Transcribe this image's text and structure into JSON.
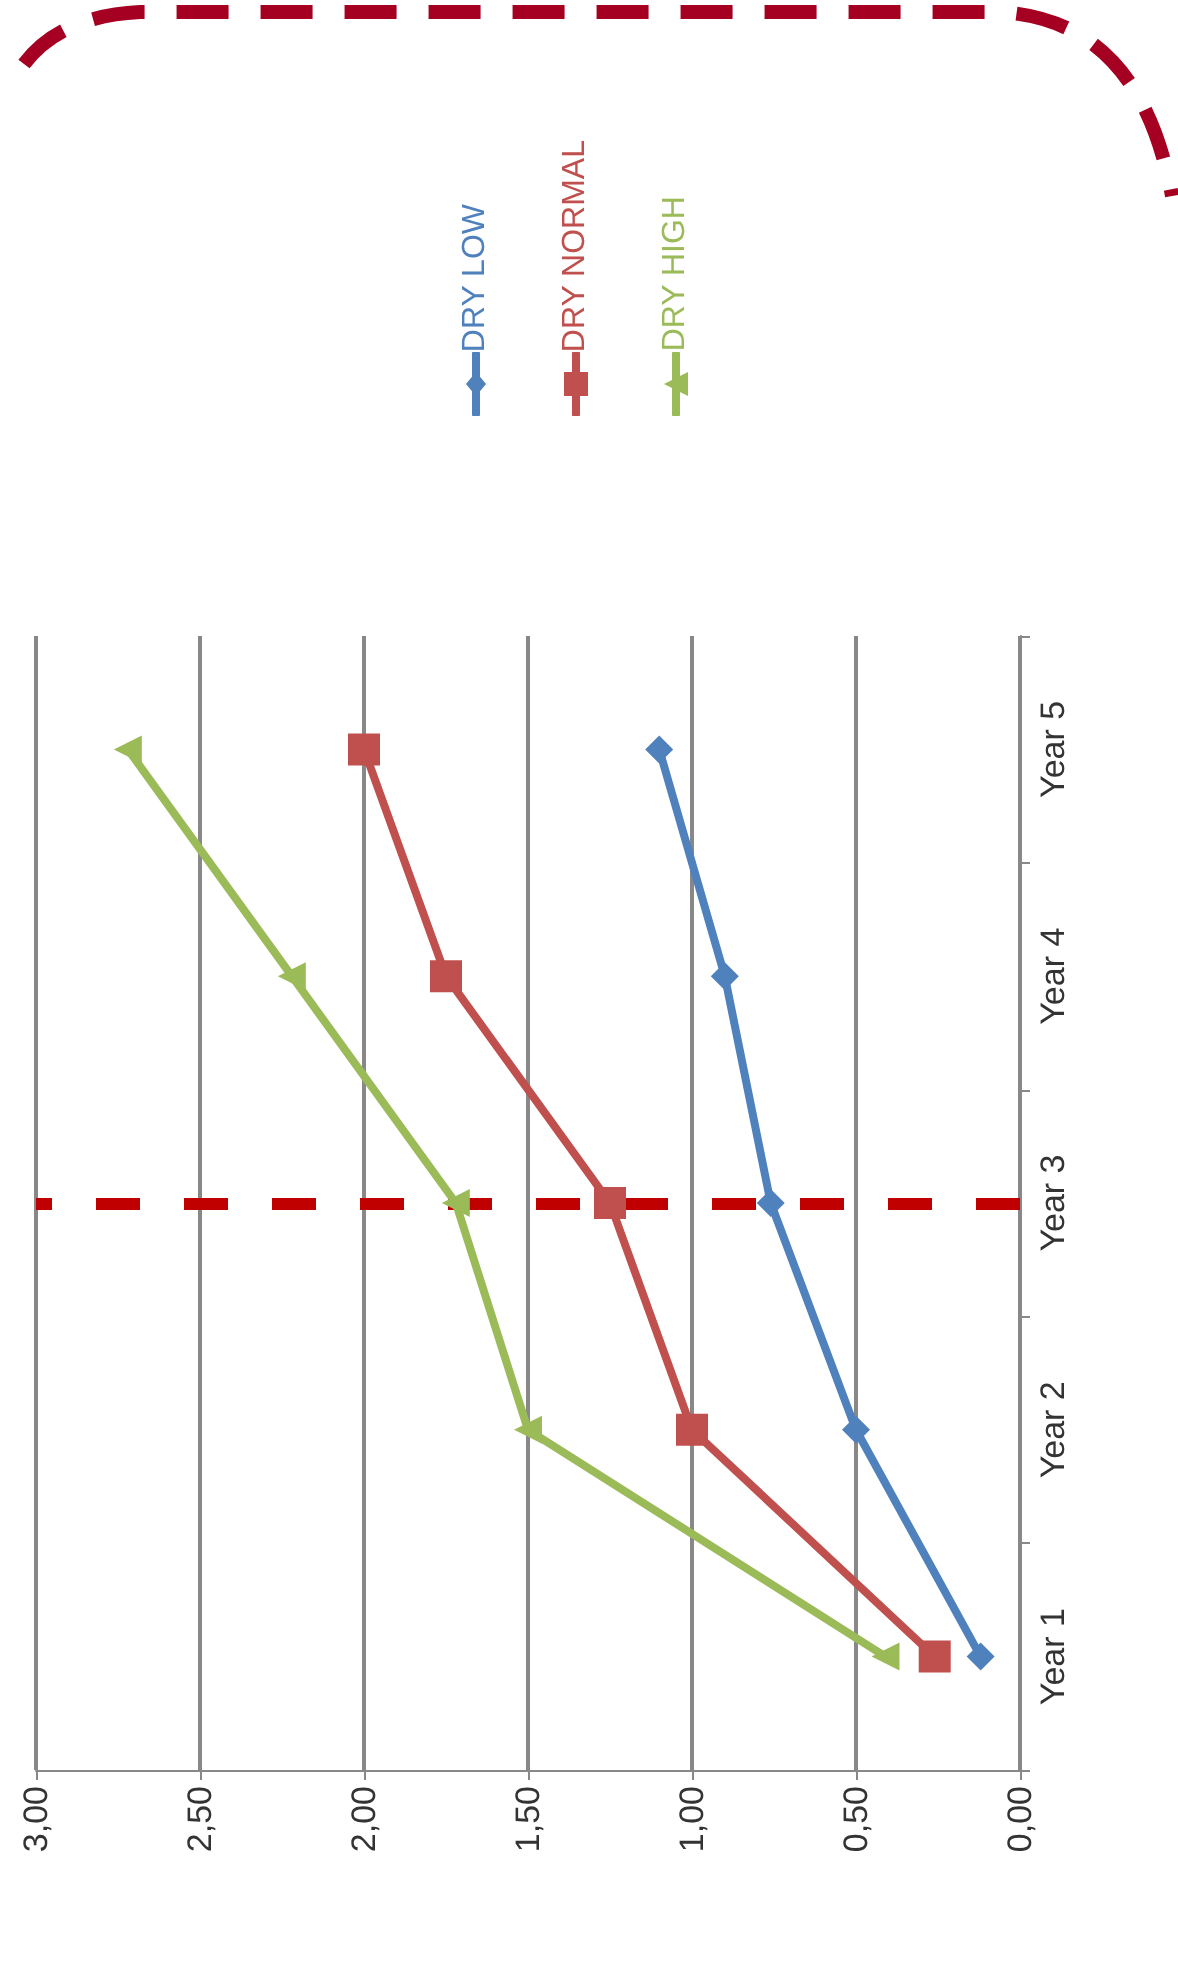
{
  "chart_data": {
    "type": "line",
    "orientation": "horizontal",
    "categories": [
      "Year 5",
      "Year 4",
      "Year 3",
      "Year 2",
      "Year 1"
    ],
    "series": [
      {
        "name": "DRY LOW",
        "color": "#4f81bd",
        "marker": "diamond",
        "values": [
          1.1,
          0.9,
          0.76,
          0.5,
          0.12
        ]
      },
      {
        "name": "DRY NORMAL",
        "color": "#c0504d",
        "marker": "square",
        "values": [
          2.0,
          1.75,
          1.25,
          1.0,
          0.26
        ]
      },
      {
        "name": "DRY HIGH",
        "color": "#9bbb59",
        "marker": "triangle",
        "values": [
          2.72,
          2.22,
          1.72,
          1.5,
          0.41
        ]
      }
    ],
    "xlim": [
      3,
      0
    ],
    "xticks": [
      {
        "value": 3,
        "label": "3,00"
      },
      {
        "value": 2.5,
        "label": "2,50"
      },
      {
        "value": 2,
        "label": "2,00"
      },
      {
        "value": 1.5,
        "label": "1,50"
      },
      {
        "value": 1,
        "label": "1,00"
      },
      {
        "value": 0.5,
        "label": "0,50"
      },
      {
        "value": 0,
        "label": "0,00"
      }
    ],
    "grid": "x",
    "legend": "top",
    "line_style": "solid",
    "ref_lines": [
      {
        "axis": "y",
        "value": "Year 3",
        "color": "#c00000",
        "line_style": "dashed"
      }
    ]
  }
}
